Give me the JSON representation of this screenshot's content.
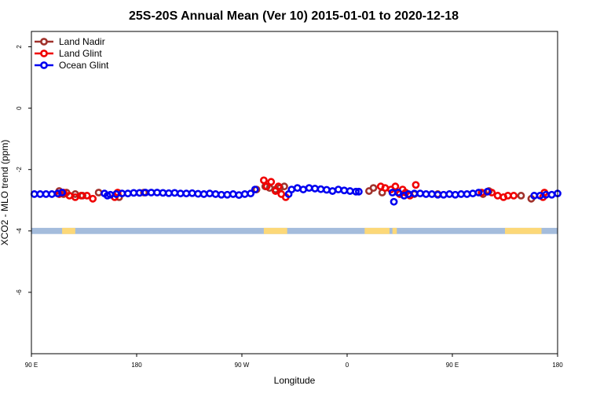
{
  "chart_data": {
    "type": "scatter",
    "title": "25S-20S Annual Mean (Ver 10)   2015-01-01 to 2020-12-18",
    "xlabel": "Longitude",
    "ylabel": "XCO2 - MLO trend (ppm)",
    "xlim": [
      90,
      450
    ],
    "ylim": [
      -8,
      2.5
    ],
    "x_ticks": [
      {
        "value": 90,
        "label": "90 E"
      },
      {
        "value": 162,
        "label": "180"
      },
      {
        "value": 234,
        "label": "90 W"
      },
      {
        "value": 306,
        "label": "0"
      },
      {
        "value": 378,
        "label": "90 E"
      },
      {
        "value": 450,
        "label": "180"
      }
    ],
    "y_ticks": [
      -6,
      -4,
      -2,
      0,
      2
    ],
    "grid": false,
    "legend_position": "top-left",
    "land_band": {
      "y_range": [
        -4.1,
        -3.9
      ],
      "ocean_color": "#a4bcdc",
      "land_color": "#fcd878",
      "land_segments": [
        [
          111,
          120
        ],
        [
          249,
          265
        ],
        [
          318,
          335
        ],
        [
          337,
          340
        ],
        [
          414,
          439
        ]
      ]
    },
    "series": [
      {
        "name": "Land Nadir",
        "color": "#a0322c",
        "points": [
          [
            109,
            -2.7
          ],
          [
            112,
            -2.8
          ],
          [
            114,
            -2.75
          ],
          [
            120,
            -2.8
          ],
          [
            125,
            -2.85
          ],
          [
            136,
            -2.75
          ],
          [
            150,
            -2.9
          ],
          [
            167,
            -2.75
          ],
          [
            244,
            -2.65
          ],
          [
            250,
            -2.55
          ],
          [
            253,
            -2.6
          ],
          [
            257,
            -2.65
          ],
          [
            260,
            -2.6
          ],
          [
            263,
            -2.55
          ],
          [
            321,
            -2.7
          ],
          [
            324,
            -2.6
          ],
          [
            330,
            -2.75
          ],
          [
            352,
            -2.8
          ],
          [
            368,
            -2.8
          ],
          [
            399,
            -2.8
          ],
          [
            403,
            -2.7
          ],
          [
            425,
            -2.85
          ],
          [
            432,
            -2.95
          ]
        ]
      },
      {
        "name": "Land Glint",
        "color": "#f00000",
        "points": [
          [
            109,
            -2.8
          ],
          [
            112,
            -2.75
          ],
          [
            116,
            -2.85
          ],
          [
            120,
            -2.9
          ],
          [
            124,
            -2.85
          ],
          [
            128,
            -2.85
          ],
          [
            132,
            -2.95
          ],
          [
            147,
            -2.9
          ],
          [
            149,
            -2.75
          ],
          [
            249,
            -2.35
          ],
          [
            251,
            -2.55
          ],
          [
            254,
            -2.4
          ],
          [
            257,
            -2.7
          ],
          [
            259,
            -2.55
          ],
          [
            261,
            -2.8
          ],
          [
            264,
            -2.9
          ],
          [
            329,
            -2.55
          ],
          [
            332,
            -2.6
          ],
          [
            336,
            -2.65
          ],
          [
            339,
            -2.55
          ],
          [
            342,
            -2.8
          ],
          [
            344,
            -2.65
          ],
          [
            346,
            -2.75
          ],
          [
            349,
            -2.85
          ],
          [
            353,
            -2.5
          ],
          [
            398,
            -2.75
          ],
          [
            405,
            -2.75
          ],
          [
            409,
            -2.85
          ],
          [
            413,
            -2.9
          ],
          [
            416,
            -2.85
          ],
          [
            420,
            -2.85
          ],
          [
            440,
            -2.9
          ],
          [
            441,
            -2.75
          ]
        ]
      },
      {
        "name": "Ocean Glint",
        "color": "#0000f0",
        "points": [
          [
            92,
            -2.8
          ],
          [
            96,
            -2.8
          ],
          [
            100,
            -2.8
          ],
          [
            104,
            -2.8
          ],
          [
            108,
            -2.78
          ],
          [
            111,
            -2.75
          ],
          [
            140,
            -2.78
          ],
          [
            142,
            -2.85
          ],
          [
            144,
            -2.82
          ],
          [
            148,
            -2.8
          ],
          [
            152,
            -2.78
          ],
          [
            156,
            -2.78
          ],
          [
            160,
            -2.76
          ],
          [
            164,
            -2.76
          ],
          [
            168,
            -2.75
          ],
          [
            172,
            -2.75
          ],
          [
            176,
            -2.75
          ],
          [
            180,
            -2.76
          ],
          [
            184,
            -2.77
          ],
          [
            188,
            -2.76
          ],
          [
            192,
            -2.78
          ],
          [
            196,
            -2.78
          ],
          [
            200,
            -2.77
          ],
          [
            204,
            -2.79
          ],
          [
            208,
            -2.8
          ],
          [
            212,
            -2.78
          ],
          [
            216,
            -2.8
          ],
          [
            220,
            -2.82
          ],
          [
            224,
            -2.82
          ],
          [
            228,
            -2.8
          ],
          [
            232,
            -2.83
          ],
          [
            236,
            -2.8
          ],
          [
            240,
            -2.78
          ],
          [
            243,
            -2.65
          ],
          [
            266,
            -2.8
          ],
          [
            268,
            -2.65
          ],
          [
            272,
            -2.6
          ],
          [
            276,
            -2.65
          ],
          [
            280,
            -2.6
          ],
          [
            284,
            -2.62
          ],
          [
            288,
            -2.64
          ],
          [
            292,
            -2.66
          ],
          [
            296,
            -2.7
          ],
          [
            300,
            -2.65
          ],
          [
            304,
            -2.68
          ],
          [
            308,
            -2.7
          ],
          [
            312,
            -2.72
          ],
          [
            314,
            -2.72
          ],
          [
            337,
            -2.75
          ],
          [
            338,
            -3.05
          ],
          [
            341,
            -2.75
          ],
          [
            345,
            -2.85
          ],
          [
            348,
            -2.8
          ],
          [
            352,
            -2.78
          ],
          [
            356,
            -2.78
          ],
          [
            360,
            -2.8
          ],
          [
            364,
            -2.8
          ],
          [
            368,
            -2.82
          ],
          [
            372,
            -2.82
          ],
          [
            376,
            -2.8
          ],
          [
            380,
            -2.82
          ],
          [
            384,
            -2.8
          ],
          [
            388,
            -2.8
          ],
          [
            392,
            -2.78
          ],
          [
            396,
            -2.75
          ],
          [
            402,
            -2.72
          ],
          [
            434,
            -2.85
          ],
          [
            438,
            -2.85
          ],
          [
            442,
            -2.82
          ],
          [
            446,
            -2.82
          ],
          [
            450,
            -2.78
          ]
        ]
      }
    ]
  }
}
